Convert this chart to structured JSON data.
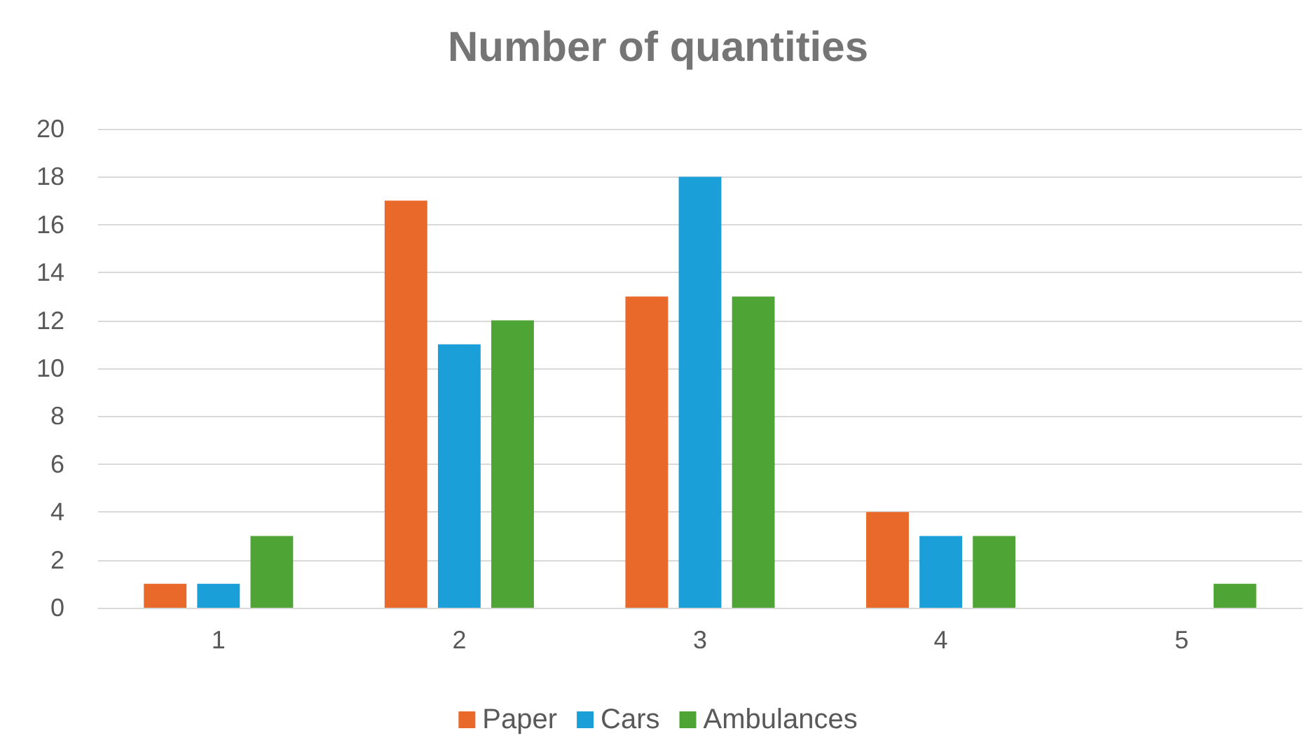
{
  "chart_data": {
    "type": "bar",
    "title": "Number of quantities",
    "categories": [
      "1",
      "2",
      "3",
      "4",
      "5"
    ],
    "series": [
      {
        "name": "Paper",
        "color": "#e8692a",
        "values": [
          1,
          17,
          13,
          4,
          0
        ]
      },
      {
        "name": "Cars",
        "color": "#1a9fd9",
        "values": [
          1,
          11,
          18,
          3,
          0
        ]
      },
      {
        "name": "Ambulances",
        "color": "#4ea434",
        "values": [
          3,
          12,
          13,
          3,
          1
        ]
      }
    ],
    "ylim": [
      0,
      20
    ],
    "yticks": [
      0,
      2,
      4,
      6,
      8,
      10,
      12,
      14,
      16,
      18,
      20
    ],
    "grid": "y",
    "legend": "bottom"
  }
}
